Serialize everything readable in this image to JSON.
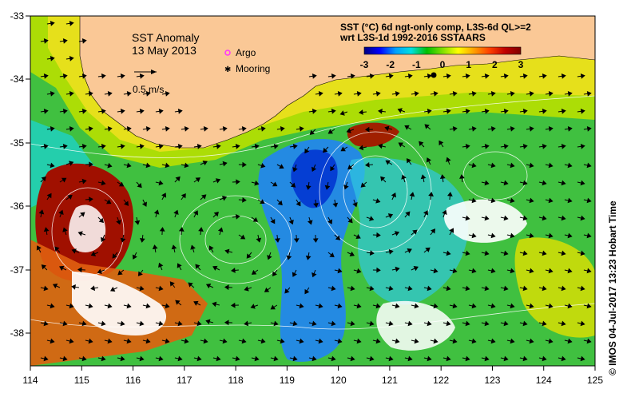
{
  "map": {
    "title": "SST Anomaly",
    "date": "13 May 2013",
    "vector_scale_label": "0.5 m/s",
    "legend": {
      "argo_label": "Argo",
      "mooring_label": "Mooring",
      "argo_color": "#ff33ff",
      "mooring_color": "#000000"
    },
    "colorbar": {
      "title_line1": "SST (°C) 6d ngt-only comp, L3S-6d QL>=2",
      "title_line2": "wrt L3S-1d 1992-2016 SSTAARS",
      "ticks": [
        "-3",
        "-2",
        "-1",
        "0",
        "1",
        "2",
        "3"
      ],
      "colors": [
        "#000080",
        "#0000ff",
        "#00a0ff",
        "#00e0e0",
        "#00c000",
        "#80e000",
        "#ffff00",
        "#ffa000",
        "#ff4000",
        "#c00000",
        "#800000"
      ]
    },
    "x_axis": {
      "ticks": [
        "114",
        "115",
        "116",
        "117",
        "118",
        "119",
        "120",
        "121",
        "122",
        "123",
        "124",
        "125"
      ]
    },
    "y_axis": {
      "ticks": [
        "-33",
        "-34",
        "-35",
        "-36",
        "-37",
        "-38"
      ]
    },
    "land_color": "#fac896",
    "ocean_color": "#40c040",
    "credit": "© IMOS 04-Jul-2017 13:23 Hobart Time"
  }
}
